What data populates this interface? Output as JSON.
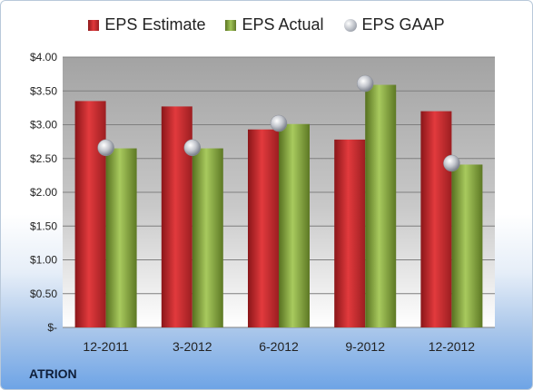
{
  "chart_data": {
    "type": "bar",
    "categories": [
      "12-2011",
      "3-2012",
      "6-2012",
      "9-2012",
      "12-2012"
    ],
    "series": [
      {
        "name": "EPS Estimate",
        "kind": "bar",
        "color": "#d42a2e",
        "values": [
          3.35,
          3.27,
          2.93,
          2.78,
          3.2
        ]
      },
      {
        "name": "EPS Actual",
        "kind": "bar",
        "color": "#8fb048",
        "values": [
          2.65,
          2.65,
          3.01,
          3.59,
          2.41
        ]
      },
      {
        "name": "EPS GAAP",
        "kind": "marker",
        "color": "#b5b9c1",
        "values": [
          2.66,
          2.66,
          3.02,
          3.61,
          2.43
        ]
      }
    ],
    "y_ticks": [
      "$-",
      "$0.50",
      "$1.00",
      "$1.50",
      "$2.00",
      "$2.50",
      "$3.00",
      "$3.50",
      "$4.00"
    ],
    "ylim": [
      0,
      4
    ],
    "grid": true,
    "legend_position": "top"
  },
  "company": "ATRION"
}
